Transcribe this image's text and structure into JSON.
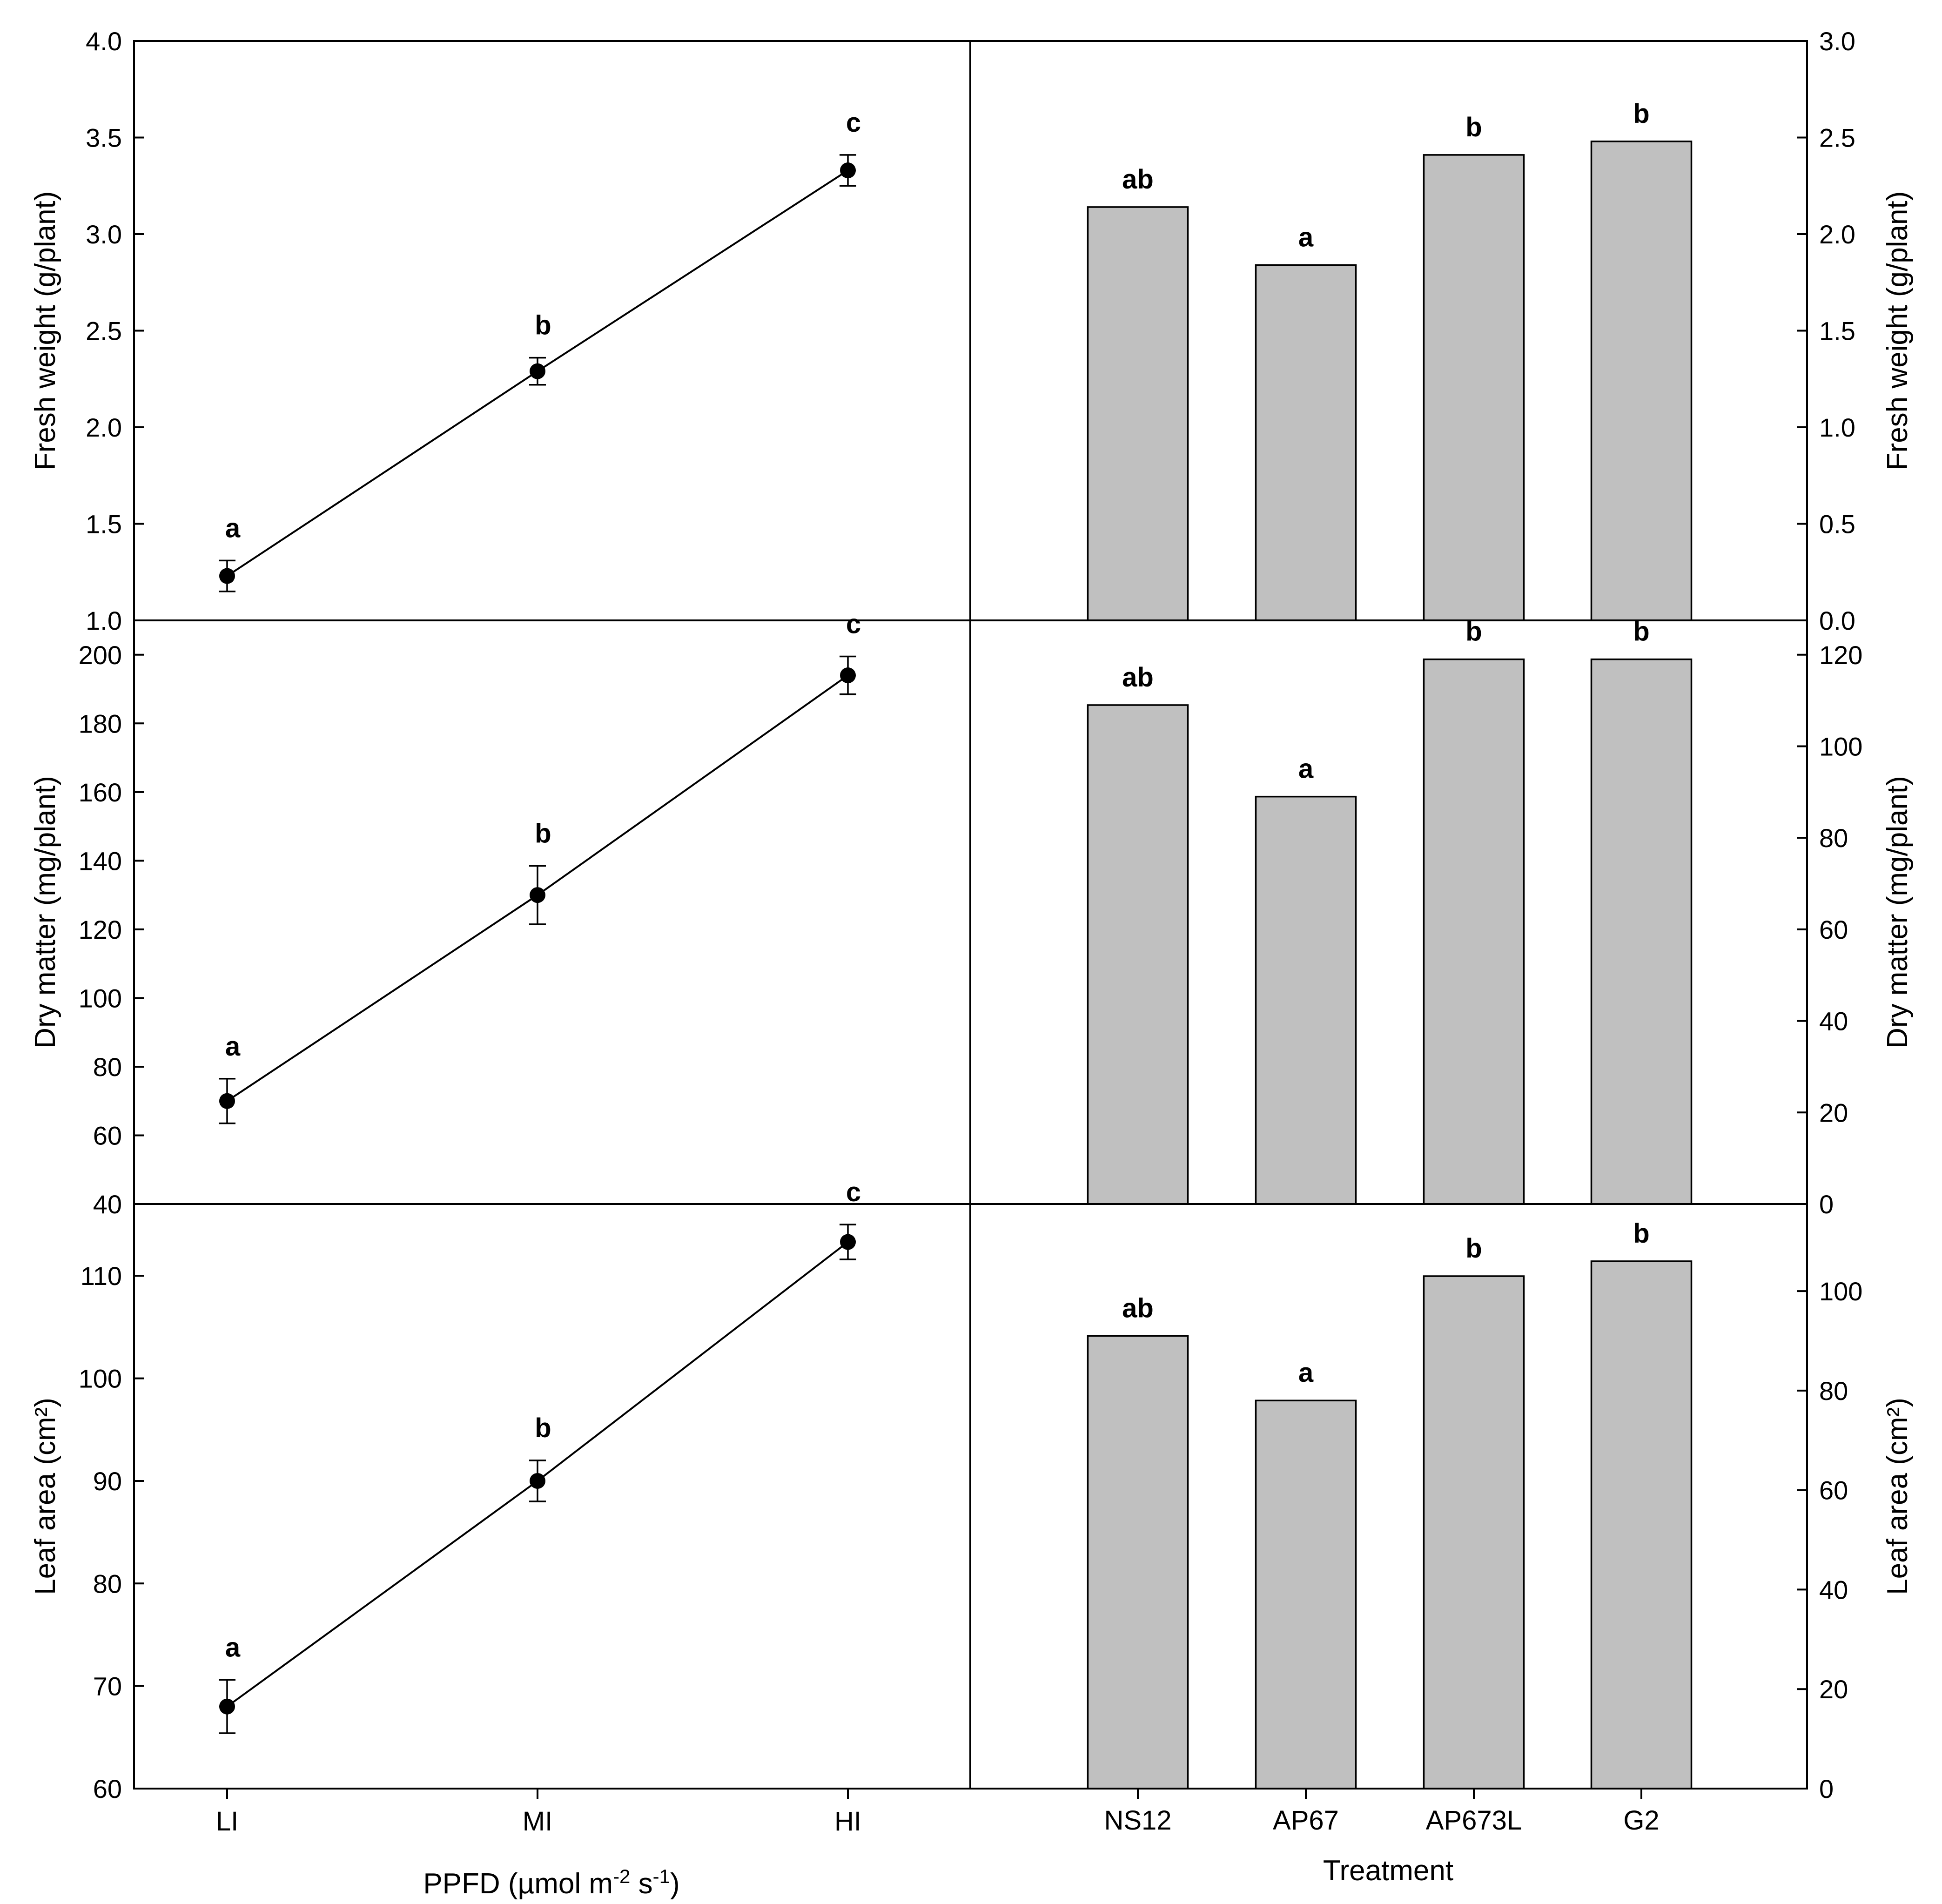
{
  "chart_data": [
    {
      "id": "fw-line",
      "type": "line",
      "ylabel": "Fresh weight (g/plant)",
      "ylim": [
        1.0,
        4.0
      ],
      "yticks": [
        "1.0",
        "1.5",
        "2.0",
        "2.5",
        "3.0",
        "3.5",
        "4.0"
      ],
      "categories": [
        "LI",
        "MI",
        "HI"
      ],
      "values": [
        1.23,
        2.29,
        3.33
      ],
      "errors": [
        0.08,
        0.07,
        0.08
      ],
      "significance": [
        "a",
        "b",
        "c"
      ]
    },
    {
      "id": "fw-bar",
      "type": "bar",
      "ylabel": "Fresh weight (g/plant)",
      "ylim": [
        0.0,
        3.0
      ],
      "yticks": [
        "0.0",
        "0.5",
        "1.0",
        "1.5",
        "2.0",
        "2.5",
        "3.0"
      ],
      "categories": [
        "NS12",
        "AP67",
        "AP673L",
        "G2"
      ],
      "values": [
        2.14,
        1.84,
        2.41,
        2.48
      ],
      "significance": [
        "ab",
        "a",
        "b",
        "b"
      ]
    },
    {
      "id": "dm-line",
      "type": "line",
      "ylabel": "Dry matter (mg/plant)",
      "ylim": [
        40,
        210
      ],
      "yticks": [
        "40",
        "60",
        "80",
        "100",
        "120",
        "140",
        "160",
        "180",
        "200"
      ],
      "categories": [
        "LI",
        "MI",
        "HI"
      ],
      "values": [
        70,
        130,
        194
      ],
      "errors": [
        6.5,
        8.5,
        5.5
      ],
      "significance": [
        "a",
        "b",
        "c"
      ]
    },
    {
      "id": "dm-bar",
      "type": "bar",
      "ylabel": "Dry matter (mg/plant)",
      "ylim": [
        0,
        127.5
      ],
      "yticks": [
        "0",
        "20",
        "40",
        "60",
        "80",
        "100",
        "120"
      ],
      "categories": [
        "NS12",
        "AP67",
        "AP673L",
        "G2"
      ],
      "values": [
        109,
        89,
        119,
        119
      ],
      "significance": [
        "ab",
        "a",
        "b",
        "b"
      ]
    },
    {
      "id": "la-line",
      "type": "line",
      "ylabel": "Leaf area (cm²)",
      "ylim": [
        60,
        117
      ],
      "yticks": [
        "60",
        "70",
        "80",
        "90",
        "100",
        "110"
      ],
      "categories": [
        "LI",
        "MI",
        "HI"
      ],
      "values": [
        68,
        90,
        113.3
      ],
      "errors": [
        2.6,
        2.0,
        1.7
      ],
      "significance": [
        "a",
        "b",
        "c"
      ]
    },
    {
      "id": "la-bar",
      "type": "bar",
      "ylabel": "Leaf area (cm²)",
      "ylim": [
        0,
        117.5
      ],
      "yticks": [
        "0",
        "20",
        "40",
        "60",
        "80",
        "100"
      ],
      "categories": [
        "NS12",
        "AP67",
        "AP673L",
        "G2"
      ],
      "values": [
        91,
        78,
        103,
        106
      ],
      "significance": [
        "ab",
        "a",
        "b",
        "b"
      ]
    }
  ],
  "axes": {
    "x_left_prefix": "PPFD (µmol m",
    "x_left_exp1": "-2",
    "x_left_mid": " s",
    "x_left_exp2": "-1",
    "x_left_suffix": ")",
    "x_right": "Treatment"
  }
}
